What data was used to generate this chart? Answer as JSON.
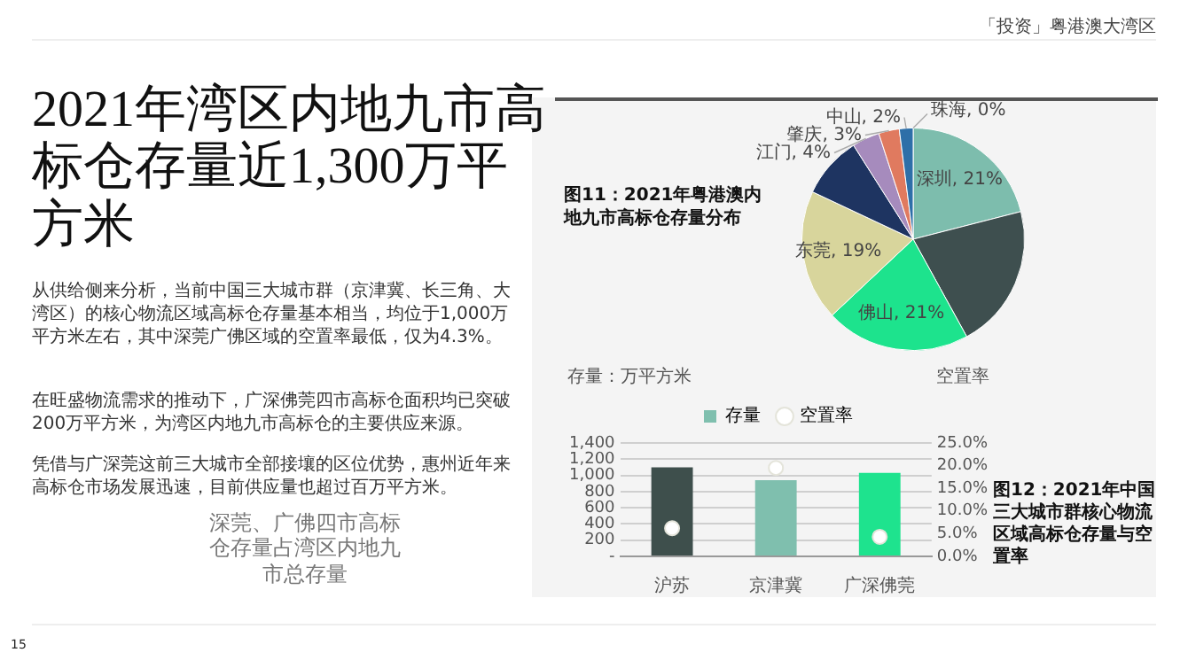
{
  "chart_data": [
    {
      "type": "pie",
      "title": "图11：2021年粤港澳内地九市高标仓存量分布",
      "categories": [
        "珠海",
        "深圳",
        null,
        "佛山",
        "东莞",
        null,
        "江门",
        "肇庆",
        "中山"
      ],
      "values": [
        0,
        21,
        21,
        21,
        19,
        9,
        4,
        3,
        2
      ],
      "value_labels": [
        "0%",
        "21%",
        null,
        "21%",
        "19%",
        null,
        "4%",
        "3%",
        "2%"
      ],
      "colors": [
        "#cccccc",
        "#7dbdad",
        "#3e4f4f",
        "#1de38d",
        "#d8d59c",
        "#1e3461",
        "#a68bbd",
        "#e07a5f",
        "#2e6fa8"
      ],
      "annotations": [
        "2021年湾区内地九市高标仓存量近1,300万平方米",
        "从供给侧来分析，当前中国三大城市群（京津冀、长三角、大湾区）的核心物流区域高标仓存量基本相当，均位于1,000万平方米左右，其中深莞广佛区域的空置率最低，仅为4.3%。",
        "在旺盛物流需求的推动下，广深佛莞四市高标仓面积均已突破200万平方米，为湾区内地九市高标仓的主要供应来源。",
        "凭借与广深莞这前三大城市全部接壤的区位优势，惠州近年来高标仓市场发展迅速，目前供应量也超过百万平方米。",
        "深莞、广佛四市高标仓存量占湾区内地九市总存量",
        "「投资」粤港澳大湾区",
        "15"
      ]
    },
    {
      "type": "bar",
      "title": "图12：2021年中国三大城市群核心物流区域高标仓存量与空置率",
      "categories": [
        "沪苏",
        "京津冀",
        "广深佛莞"
      ],
      "ylabel": "存量：万平方米",
      "y2label": "空置率",
      "series": [
        {
          "name": "存量",
          "type": "bar",
          "values": [
            1100,
            940,
            1030
          ],
          "colors": [
            "#3e4f4c",
            "#7fbfae",
            "#1ee38e"
          ]
        },
        {
          "name": "空置率",
          "type": "scatter",
          "axis": "y2",
          "color": "#ffffff",
          "values": [
            6.2,
            19.5,
            4.3
          ]
        }
      ],
      "ylim": [
        0,
        1400
      ],
      "yticks": [
        {
          "value": 0,
          "label": "-"
        },
        200,
        400,
        600,
        800,
        {
          "value": 1000,
          "label": "1,000"
        },
        {
          "value": 1200,
          "label": "1,200"
        },
        {
          "value": 1400,
          "label": "1,400"
        }
      ],
      "y2lim": [
        0,
        25
      ],
      "y2ticks": [
        {
          "value": 0,
          "label": "0.0%"
        },
        {
          "value": 5,
          "label": "5.0%"
        },
        {
          "value": 10,
          "label": "10.0%"
        },
        {
          "value": 15,
          "label": "15.0%"
        },
        {
          "value": 20,
          "label": "20.0%"
        },
        {
          "value": 25,
          "label": "25.0%"
        }
      ],
      "grid": "y",
      "legend": "top",
      "marker": "circle"
    }
  ]
}
